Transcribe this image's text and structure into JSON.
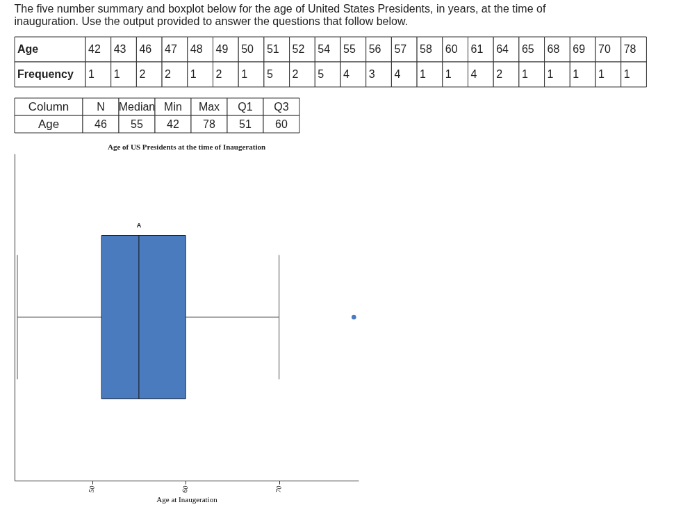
{
  "chart_data": [
    {
      "type": "other",
      "annotations": [
        "The five number summary and boxplot below for the age of United States Presidents, in years, at the time of inauguration. Use the output provided to answer the questions that follow below."
      ],
      "xlabel": "Age",
      "ylabel": "Frequency",
      "categories": [
        "42",
        "43",
        "46",
        "47",
        "48",
        "49",
        "50",
        "51",
        "52",
        "54",
        "55",
        "56",
        "57",
        "58",
        "60",
        "61",
        "64",
        "65",
        "68",
        "69",
        "70",
        "78"
      ],
      "values": [
        1,
        1,
        2,
        2,
        1,
        2,
        1,
        5,
        2,
        5,
        4,
        3,
        4,
        1,
        1,
        4,
        2,
        1,
        1,
        1,
        1,
        1
      ],
      "data_labels": true
    },
    {
      "type": "other",
      "xlabel": "Column",
      "ylabel": "Age",
      "categories": [
        "N",
        "Median",
        "Min",
        "Max",
        "Q1",
        "Q3"
      ],
      "values": [
        46,
        55,
        42,
        78,
        51,
        60
      ],
      "data_labels": true
    },
    {
      "type": "box",
      "orientation": "horizontal",
      "title": "Age of US Presidents at the time of Inaugeration",
      "xlabel": "Age at Inaugeration",
      "categories": [
        null
      ],
      "color": "#4a7bbf",
      "boxes": [
        {
          "low": 42,
          "q1": 51,
          "median": 55,
          "q3": 60,
          "high": 70,
          "outliers": [
            78
          ]
        }
      ],
      "xlim": [
        41.7,
        78.5
      ],
      "xticks": [
        50,
        60,
        70
      ],
      "tick_labels": "x",
      "grid": false,
      "annotations": [
        "A"
      ]
    }
  ]
}
